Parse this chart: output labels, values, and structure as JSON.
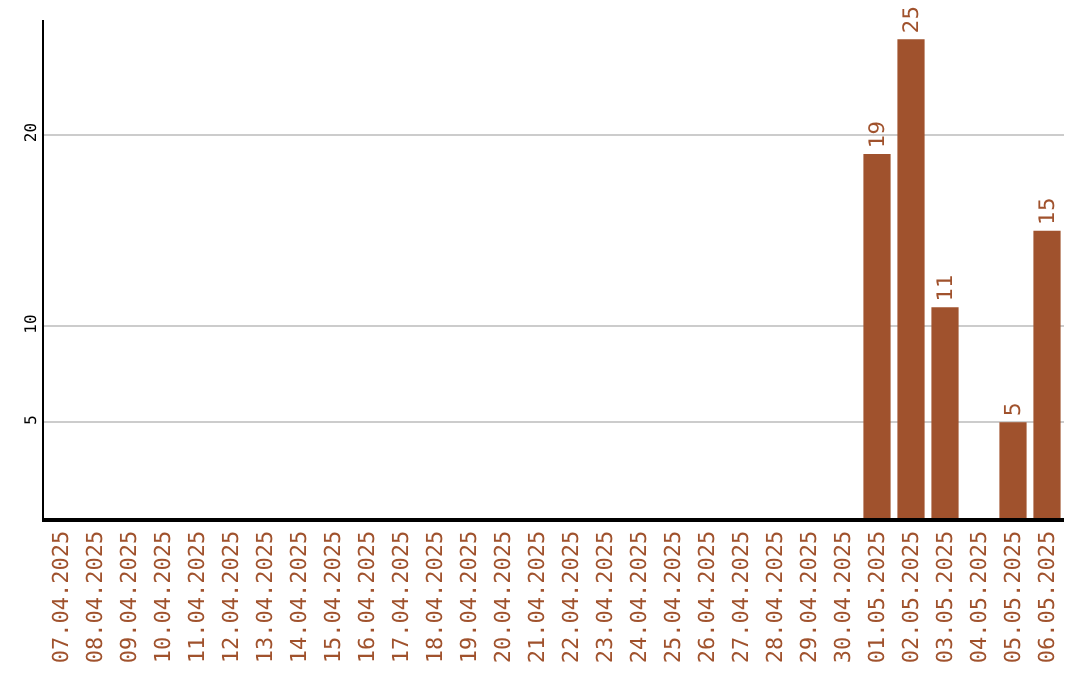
{
  "chart_data": {
    "type": "bar",
    "categories": [
      "07.04.2025",
      "08.04.2025",
      "09.04.2025",
      "10.04.2025",
      "11.04.2025",
      "12.04.2025",
      "13.04.2025",
      "14.04.2025",
      "15.04.2025",
      "16.04.2025",
      "17.04.2025",
      "18.04.2025",
      "19.04.2025",
      "20.04.2025",
      "21.04.2025",
      "22.04.2025",
      "23.04.2025",
      "24.04.2025",
      "25.04.2025",
      "26.04.2025",
      "27.04.2025",
      "28.04.2025",
      "29.04.2025",
      "30.04.2025",
      "01.05.2025",
      "02.05.2025",
      "03.05.2025",
      "04.05.2025",
      "05.05.2025",
      "06.05.2025"
    ],
    "values": [
      0,
      0,
      0,
      0,
      0,
      0,
      0,
      0,
      0,
      0,
      0,
      0,
      0,
      0,
      0,
      0,
      0,
      0,
      0,
      0,
      0,
      0,
      0,
      0,
      19,
      25,
      11,
      0,
      5,
      15
    ],
    "value_labels": [
      null,
      null,
      null,
      null,
      null,
      null,
      null,
      null,
      null,
      null,
      null,
      null,
      null,
      null,
      null,
      null,
      null,
      null,
      null,
      null,
      null,
      null,
      null,
      null,
      "19",
      "25",
      "11",
      null,
      "5",
      "15"
    ],
    "color": "#a0522d",
    "ylim": [
      0,
      26
    ],
    "yticks": [
      5,
      10,
      20
    ],
    "grid": "y",
    "legend": false
  }
}
